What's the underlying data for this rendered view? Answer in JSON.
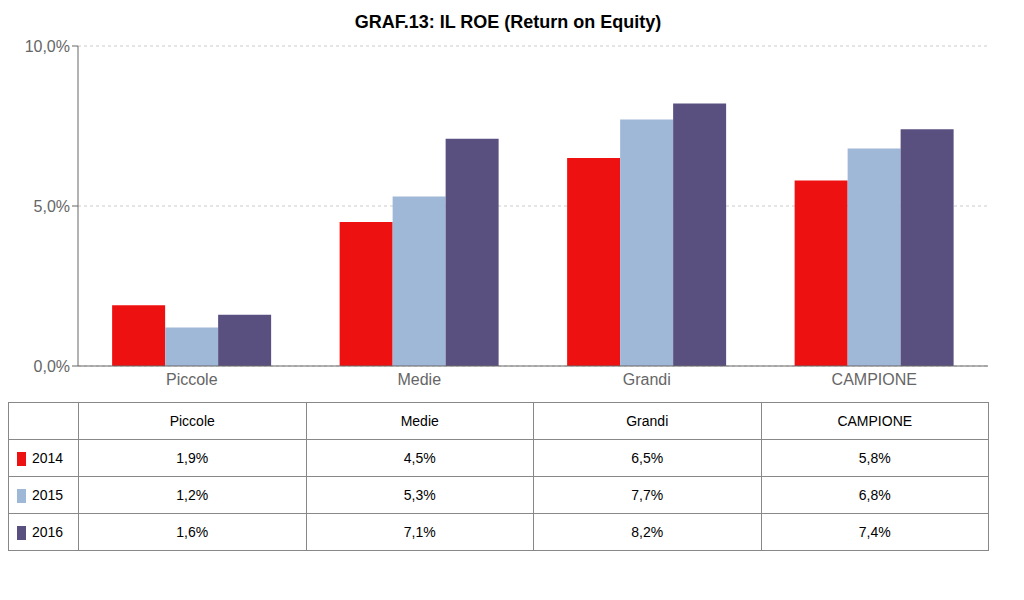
{
  "chart_data": {
    "type": "bar",
    "title": "GRAF.13: IL ROE (Return on Equity)",
    "categories": [
      "Piccole",
      "Medie",
      "Grandi",
      "CAMPIONE"
    ],
    "series": [
      {
        "name": "2014",
        "color": "#ee1111",
        "values": [
          1.9,
          4.5,
          6.5,
          5.8
        ],
        "value_labels": [
          "1,9%",
          "4,5%",
          "6,5%",
          "5,8%"
        ]
      },
      {
        "name": "2015",
        "color": "#a0b8d8",
        "values": [
          1.2,
          5.3,
          7.7,
          6.8
        ],
        "value_labels": [
          "1,2%",
          "5,3%",
          "7,7%",
          "6,8%"
        ]
      },
      {
        "name": "2016",
        "color": "#5a5080",
        "values": [
          1.6,
          7.1,
          8.2,
          7.4
        ],
        "value_labels": [
          "1,6%",
          "7,1%",
          "8,2%",
          "7,4%"
        ]
      }
    ],
    "ylim": [
      0,
      10.0
    ],
    "yticks": [
      {
        "value": 0.0,
        "label": "0,0%"
      },
      {
        "value": 5.0,
        "label": "5,0%"
      },
      {
        "value": 10.0,
        "label": "10,0%"
      }
    ],
    "grid": true
  }
}
